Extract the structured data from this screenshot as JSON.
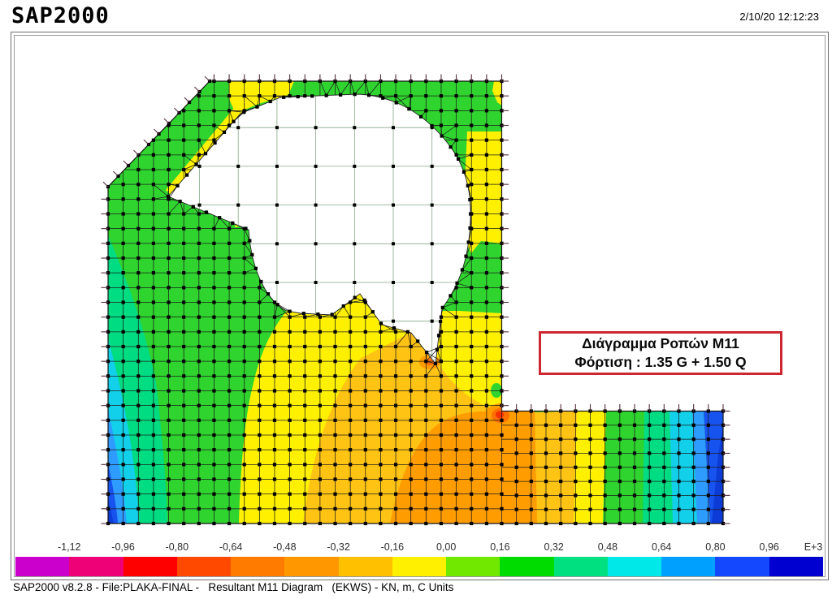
{
  "header": {
    "app_name": "SAP2000",
    "timestamp": "2/10/20 12:12:23"
  },
  "annotation_box": {
    "title": "Διάγραμμα Ροπών Μ11",
    "load_case": "Φόρτιση : 1.35 G + 1.50 Q"
  },
  "legend": {
    "tick_labels": [
      "-1,12",
      "-0,96",
      "-0,80",
      "-0,64",
      "-0,48",
      "-0,32",
      "-0,16",
      "0,00",
      "0,16",
      "0,32",
      "0,48",
      "0,64",
      "0,80",
      "0,96"
    ],
    "exponent_label": "E+3",
    "segment_colors": [
      "#cc00cc",
      "#ee0077",
      "#ff0000",
      "#ff4900",
      "#ff7b00",
      "#ff9800",
      "#ffc000",
      "#fff000",
      "#70e800",
      "#00dc00",
      "#00e080",
      "#00e8e8",
      "#00a0ff",
      "#1448ff",
      "#0000d0"
    ]
  },
  "status_bar": {
    "text": "SAP2000 v8.2.8 - File:PLAKA-FINAL -   Resultant M11 Diagram   (EKWS) - KN, m, C Units"
  },
  "plot": {
    "type": "fem-contour",
    "palette": {
      "green": "#2fd42f",
      "spring": "#00dc82",
      "cyan": "#12d0ea",
      "lblue": "#2e9bff",
      "blue": "#1753ee",
      "dblue": "#0c3bd6",
      "yellow": "#fff000",
      "amber": "#ffc314",
      "orange": "#ff9c00",
      "dorange": "#ff6f00",
      "red": "#f53000",
      "white": "#ffffff",
      "mesh": "#1c1c1c",
      "coarse_grid": "#86a886",
      "tick": "#552f3f",
      "node": "#000000"
    }
  }
}
